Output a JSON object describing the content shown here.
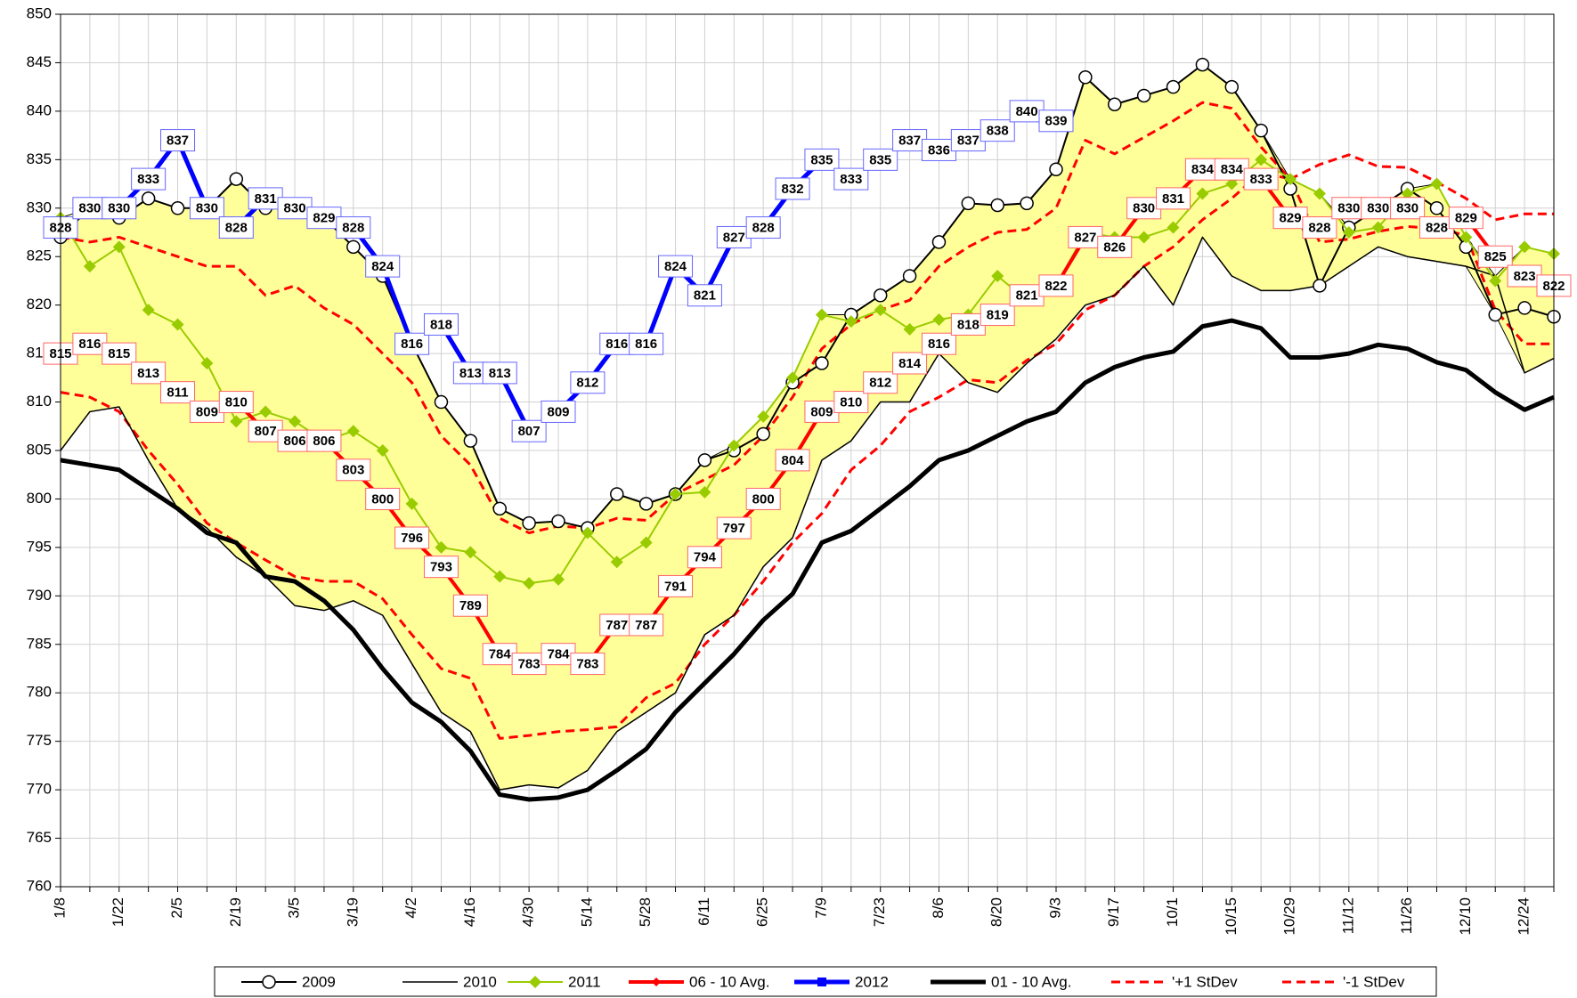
{
  "chart_data": {
    "type": "line",
    "categories": [
      "1/8",
      null,
      "1/22",
      null,
      "2/5",
      null,
      "2/19",
      null,
      "3/5",
      null,
      "3/19",
      null,
      "4/2",
      null,
      "4/16",
      null,
      "4/30",
      null,
      "5/14",
      null,
      "5/28",
      null,
      "6/11",
      null,
      "6/25",
      null,
      "7/9",
      null,
      "7/23",
      null,
      "8/6",
      null,
      "8/20",
      null,
      "9/3",
      null,
      "9/17",
      null,
      "10/1",
      null,
      "10/15",
      null,
      "10/29",
      null,
      "11/12",
      null,
      "11/26",
      null,
      "12/10",
      null,
      "12/24",
      null
    ],
    "ylim": [
      760,
      850
    ],
    "yticks": [
      760,
      765,
      770,
      775,
      780,
      785,
      790,
      795,
      800,
      805,
      810,
      815,
      820,
      825,
      830,
      835,
      840,
      845,
      850
    ],
    "grid": true,
    "band": {
      "series": [
        0,
        1,
        2
      ],
      "color": "#ffff99"
    },
    "series": [
      {
        "name": "2009",
        "color": "#000000",
        "width": 2,
        "marker": "circle",
        "values": [
          827,
          830,
          829,
          831,
          830,
          830,
          833,
          830,
          830,
          829,
          826,
          823,
          816,
          810,
          806,
          799,
          797.5,
          797.7,
          797,
          800.5,
          799.5,
          800.5,
          804,
          805,
          806.7,
          812,
          814,
          819,
          821,
          823,
          826.5,
          830.5,
          830.3,
          830.5,
          834,
          843.5,
          840.7,
          841.6,
          842.5,
          844.8,
          842.5,
          838,
          832,
          822,
          828,
          830,
          832,
          830,
          826,
          819,
          819.7,
          818.8
        ]
      },
      {
        "name": "2010",
        "color": "#000000",
        "width": 1.5,
        "values": [
          805,
          809,
          809.5,
          804,
          799,
          797,
          794,
          792,
          789,
          788.5,
          789.5,
          788,
          783,
          778,
          776,
          770,
          770.5,
          770.2,
          772,
          776,
          778,
          780,
          786,
          788,
          793,
          796,
          804,
          806,
          810,
          810,
          815,
          812,
          811,
          814,
          816.5,
          820,
          821,
          824,
          820,
          827,
          823,
          821.5,
          821.5,
          822,
          824,
          826,
          825,
          824.5,
          824,
          823,
          813,
          814.5
        ]
      },
      {
        "name": "2011",
        "color": "#99cc00",
        "width": 2,
        "marker": "diamond",
        "values": [
          829,
          824,
          826,
          819.5,
          818,
          814,
          808,
          809,
          808,
          806,
          807,
          805,
          799.5,
          795,
          794.5,
          792,
          791.3,
          791.7,
          796.5,
          793.5,
          795.5,
          800.5,
          800.7,
          805.5,
          808.5,
          812.5,
          819,
          818.3,
          819.5,
          817.5,
          818.5,
          819,
          823,
          820.5,
          822,
          827.5,
          827,
          827,
          828,
          831.5,
          832.5,
          835,
          833,
          831.5,
          827.5,
          828,
          831.5,
          832.5,
          827,
          822.5,
          826,
          825.3
        ]
      },
      {
        "name": "06 - 10 Avg.",
        "color": "#ff0000",
        "width": 4,
        "marker": "smalldiamond",
        "label_border": "#ff6666",
        "values": [
          815,
          816,
          815,
          813,
          811,
          809,
          810,
          807,
          806,
          806,
          803,
          800,
          796,
          793,
          789,
          784,
          783,
          784,
          783,
          787,
          787,
          791,
          794,
          797,
          800,
          804,
          809,
          810,
          812,
          814,
          816,
          818,
          819,
          821,
          822,
          827,
          826,
          830,
          831,
          834,
          834,
          833,
          829,
          828,
          830,
          830,
          830,
          828,
          829,
          825,
          823,
          822
        ]
      },
      {
        "name": "2012",
        "color": "#0000ff",
        "width": 5,
        "marker": "square",
        "label_border": "#6666ff",
        "values": [
          828,
          830,
          830,
          833,
          837,
          830,
          828,
          831,
          830,
          829,
          828,
          824,
          816,
          818,
          813,
          813,
          807,
          809,
          812,
          816,
          816,
          824,
          821,
          827,
          828,
          832,
          835,
          833,
          835,
          837,
          836,
          837,
          838,
          840,
          839,
          null,
          null,
          null,
          null,
          null,
          null,
          null,
          null,
          null,
          null,
          null,
          null,
          null,
          null,
          null,
          null,
          null
        ]
      },
      {
        "name": "01 - 10 Avg.",
        "color": "#000000",
        "width": 5,
        "values": [
          804,
          803.5,
          803,
          801,
          799,
          796.5,
          795.5,
          792,
          791.5,
          789.5,
          786.5,
          782.5,
          779,
          777,
          774,
          769.5,
          769,
          769.2,
          770,
          772,
          774.2,
          778,
          781,
          784,
          787.5,
          790.2,
          795.5,
          796.7,
          799,
          801.3,
          804,
          805,
          806.5,
          808,
          809,
          812,
          813.6,
          814.6,
          815.2,
          817.8,
          818.4,
          817.6,
          814.6,
          814.6,
          815,
          815.9,
          815.5,
          814.1,
          813.3,
          811,
          809.2,
          810.5
        ]
      },
      {
        "name": "'+1 StDev",
        "color": "#ff0000",
        "width": 3,
        "dash": "10 6",
        "values": [
          827,
          826.5,
          827,
          826,
          825,
          824,
          824,
          821,
          822,
          819.7,
          818,
          815,
          812,
          806.5,
          803.5,
          798,
          796.5,
          797.2,
          797,
          798,
          797.8,
          800.5,
          802,
          803.5,
          806.5,
          810.5,
          815.5,
          818,
          819.5,
          820.5,
          824,
          826,
          827.5,
          827.8,
          830,
          837,
          835.6,
          837.3,
          839,
          840.9,
          840.3,
          836.3,
          833,
          834.5,
          835.5,
          834.3,
          834.2,
          832.7,
          831,
          828.8,
          829.4,
          829.4
        ]
      },
      {
        "name": "'-1 StDev",
        "color": "#ff0000",
        "width": 3,
        "dash": "10 6",
        "values": [
          811,
          810.5,
          809,
          805,
          801.5,
          797.5,
          795.5,
          793.7,
          792,
          791.5,
          791.5,
          789.7,
          786,
          782.5,
          781.5,
          775.3,
          775.6,
          776,
          776.2,
          776.5,
          779.5,
          781,
          785,
          788,
          791.5,
          795.5,
          798.5,
          803,
          805.5,
          809,
          810.5,
          812.3,
          812,
          814.3,
          816,
          819.5,
          821,
          824,
          826,
          828.8,
          831,
          833.7,
          833,
          826.5,
          826.8,
          827.6,
          828.1,
          827.9,
          827.2,
          819.5,
          816,
          816
        ]
      }
    ]
  }
}
